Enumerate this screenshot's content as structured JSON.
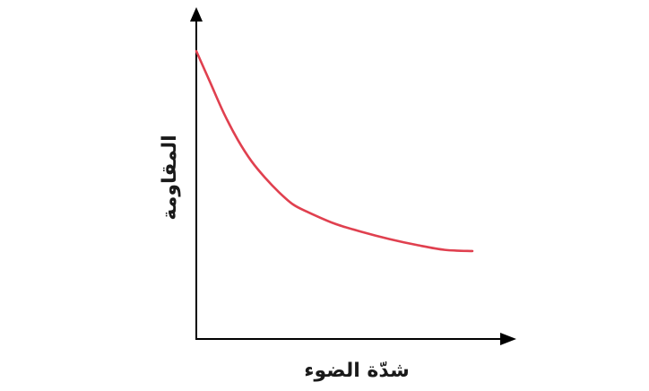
{
  "chart_data": {
    "type": "line",
    "title": "",
    "xlabel": "شدّة الضوء",
    "ylabel": "المقاومة",
    "xlim": [
      0,
      1
    ],
    "ylim": [
      0,
      1
    ],
    "grid": false,
    "tick_labels": false,
    "series": [
      {
        "name": "المقاومة",
        "color": "#e0404f",
        "x": [
          0.0,
          0.05,
          0.1,
          0.15,
          0.2,
          0.25,
          0.3,
          0.35,
          0.4,
          0.5,
          0.6,
          0.7,
          0.8,
          0.9,
          1.0
        ],
        "y": [
          1.0,
          0.87,
          0.74,
          0.63,
          0.54,
          0.47,
          0.41,
          0.36,
          0.33,
          0.28,
          0.245,
          0.215,
          0.19,
          0.17,
          0.165
        ]
      }
    ]
  }
}
